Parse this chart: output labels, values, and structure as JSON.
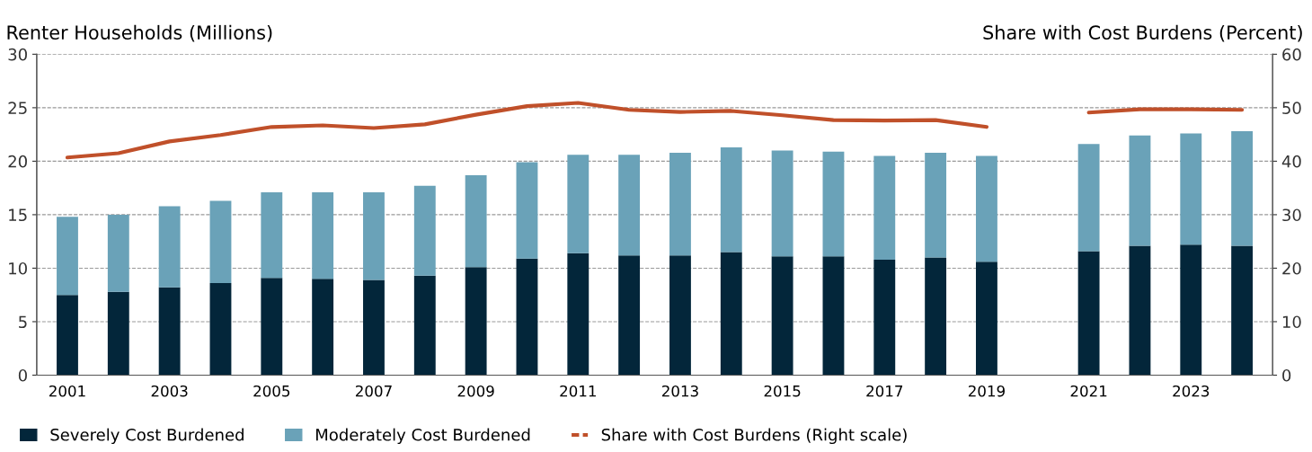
{
  "chart_data": {
    "type": "bar",
    "stacked": true,
    "ylabel": "Renter Households (Millions)",
    "y2label": "Share with Cost Burdens (Percent)",
    "categories": [
      "2001",
      null,
      "2003",
      null,
      "2005",
      null,
      "2007",
      null,
      "2009",
      null,
      "2011",
      null,
      "2013",
      null,
      "2015",
      null,
      "2017",
      null,
      "2019",
      null,
      "2021",
      null,
      "2023",
      null
    ],
    "series": [
      {
        "name": "Severely Cost Burdened",
        "color": "#03263a",
        "values": [
          7.5,
          7.8,
          8.2,
          8.6,
          9.1,
          9.0,
          8.9,
          9.3,
          10.1,
          10.9,
          11.4,
          11.2,
          11.2,
          11.5,
          11.1,
          11.1,
          10.8,
          11.0,
          10.6,
          null,
          11.6,
          12.1,
          12.2,
          12.1
        ]
      },
      {
        "name": "Moderately Cost Burdened",
        "color": "#6aa2b8",
        "values": [
          7.3,
          7.2,
          7.6,
          7.7,
          8.0,
          8.1,
          8.2,
          8.4,
          8.6,
          9.0,
          9.2,
          9.4,
          9.6,
          9.8,
          9.9,
          9.8,
          9.7,
          9.8,
          9.9,
          null,
          10.0,
          10.3,
          10.4,
          10.7
        ]
      },
      {
        "name": "Share with Cost Burdens (Right scale)",
        "type": "line",
        "axis": "y2",
        "color": "#c0502a",
        "values": [
          40.7,
          41.5,
          43.7,
          44.9,
          46.4,
          46.7,
          46.2,
          46.9,
          48.7,
          50.3,
          50.9,
          49.6,
          49.2,
          49.4,
          48.6,
          47.7,
          47.6,
          47.7,
          46.4,
          null,
          49.1,
          49.7,
          49.7,
          49.6
        ]
      }
    ],
    "ylim": [
      0,
      30
    ],
    "yticks": [
      0,
      5,
      10,
      15,
      20,
      25,
      30
    ],
    "y2lim": [
      0,
      60
    ],
    "y2ticks": [
      0,
      10,
      20,
      30,
      40,
      50,
      60
    ],
    "grid": "y",
    "legend": "bottom"
  }
}
